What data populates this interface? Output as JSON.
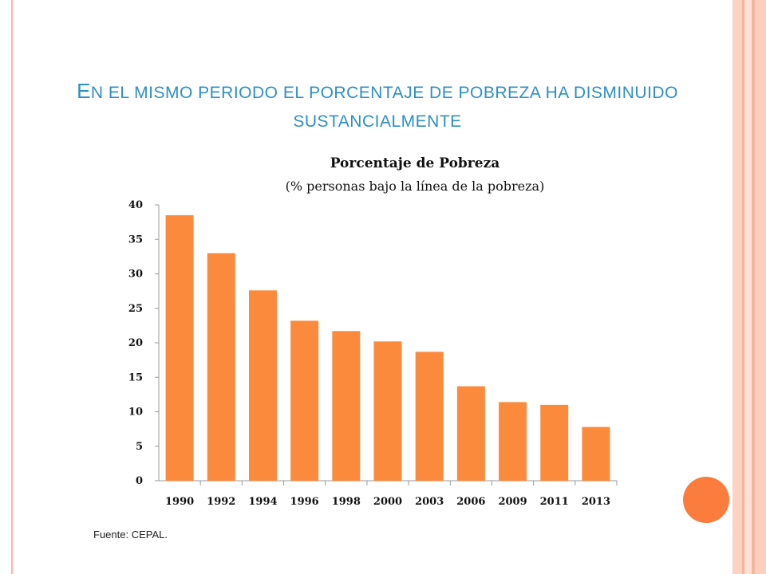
{
  "slide": {
    "title_first_letter": "E",
    "title_rest_line1": "N EL MISMO PERIODO EL PORCENTAJE DE POBREZA HA DISMINUIDO",
    "title_line2": "SUSTANCIALMENTE",
    "source": "Fuente: CEPAL."
  },
  "colors": {
    "bar": "#fb8a3d",
    "title": "#2e8fc2",
    "accent_circle": "#fb7c3c"
  },
  "chart_data": {
    "type": "bar",
    "title": "Porcentaje de Pobreza",
    "subtitle": "(% personas bajo la línea de la pobreza)",
    "categories": [
      "1990",
      "1992",
      "1994",
      "1996",
      "1998",
      "2000",
      "2003",
      "2006",
      "2009",
      "2011",
      "2013"
    ],
    "values": [
      38.5,
      33.0,
      27.6,
      23.2,
      21.7,
      20.2,
      18.7,
      13.7,
      11.4,
      11.0,
      7.8
    ],
    "ylim": [
      0,
      40
    ],
    "yticks": [
      0,
      5,
      10,
      15,
      20,
      25,
      30,
      35,
      40
    ],
    "grid": false,
    "legend": "none"
  }
}
